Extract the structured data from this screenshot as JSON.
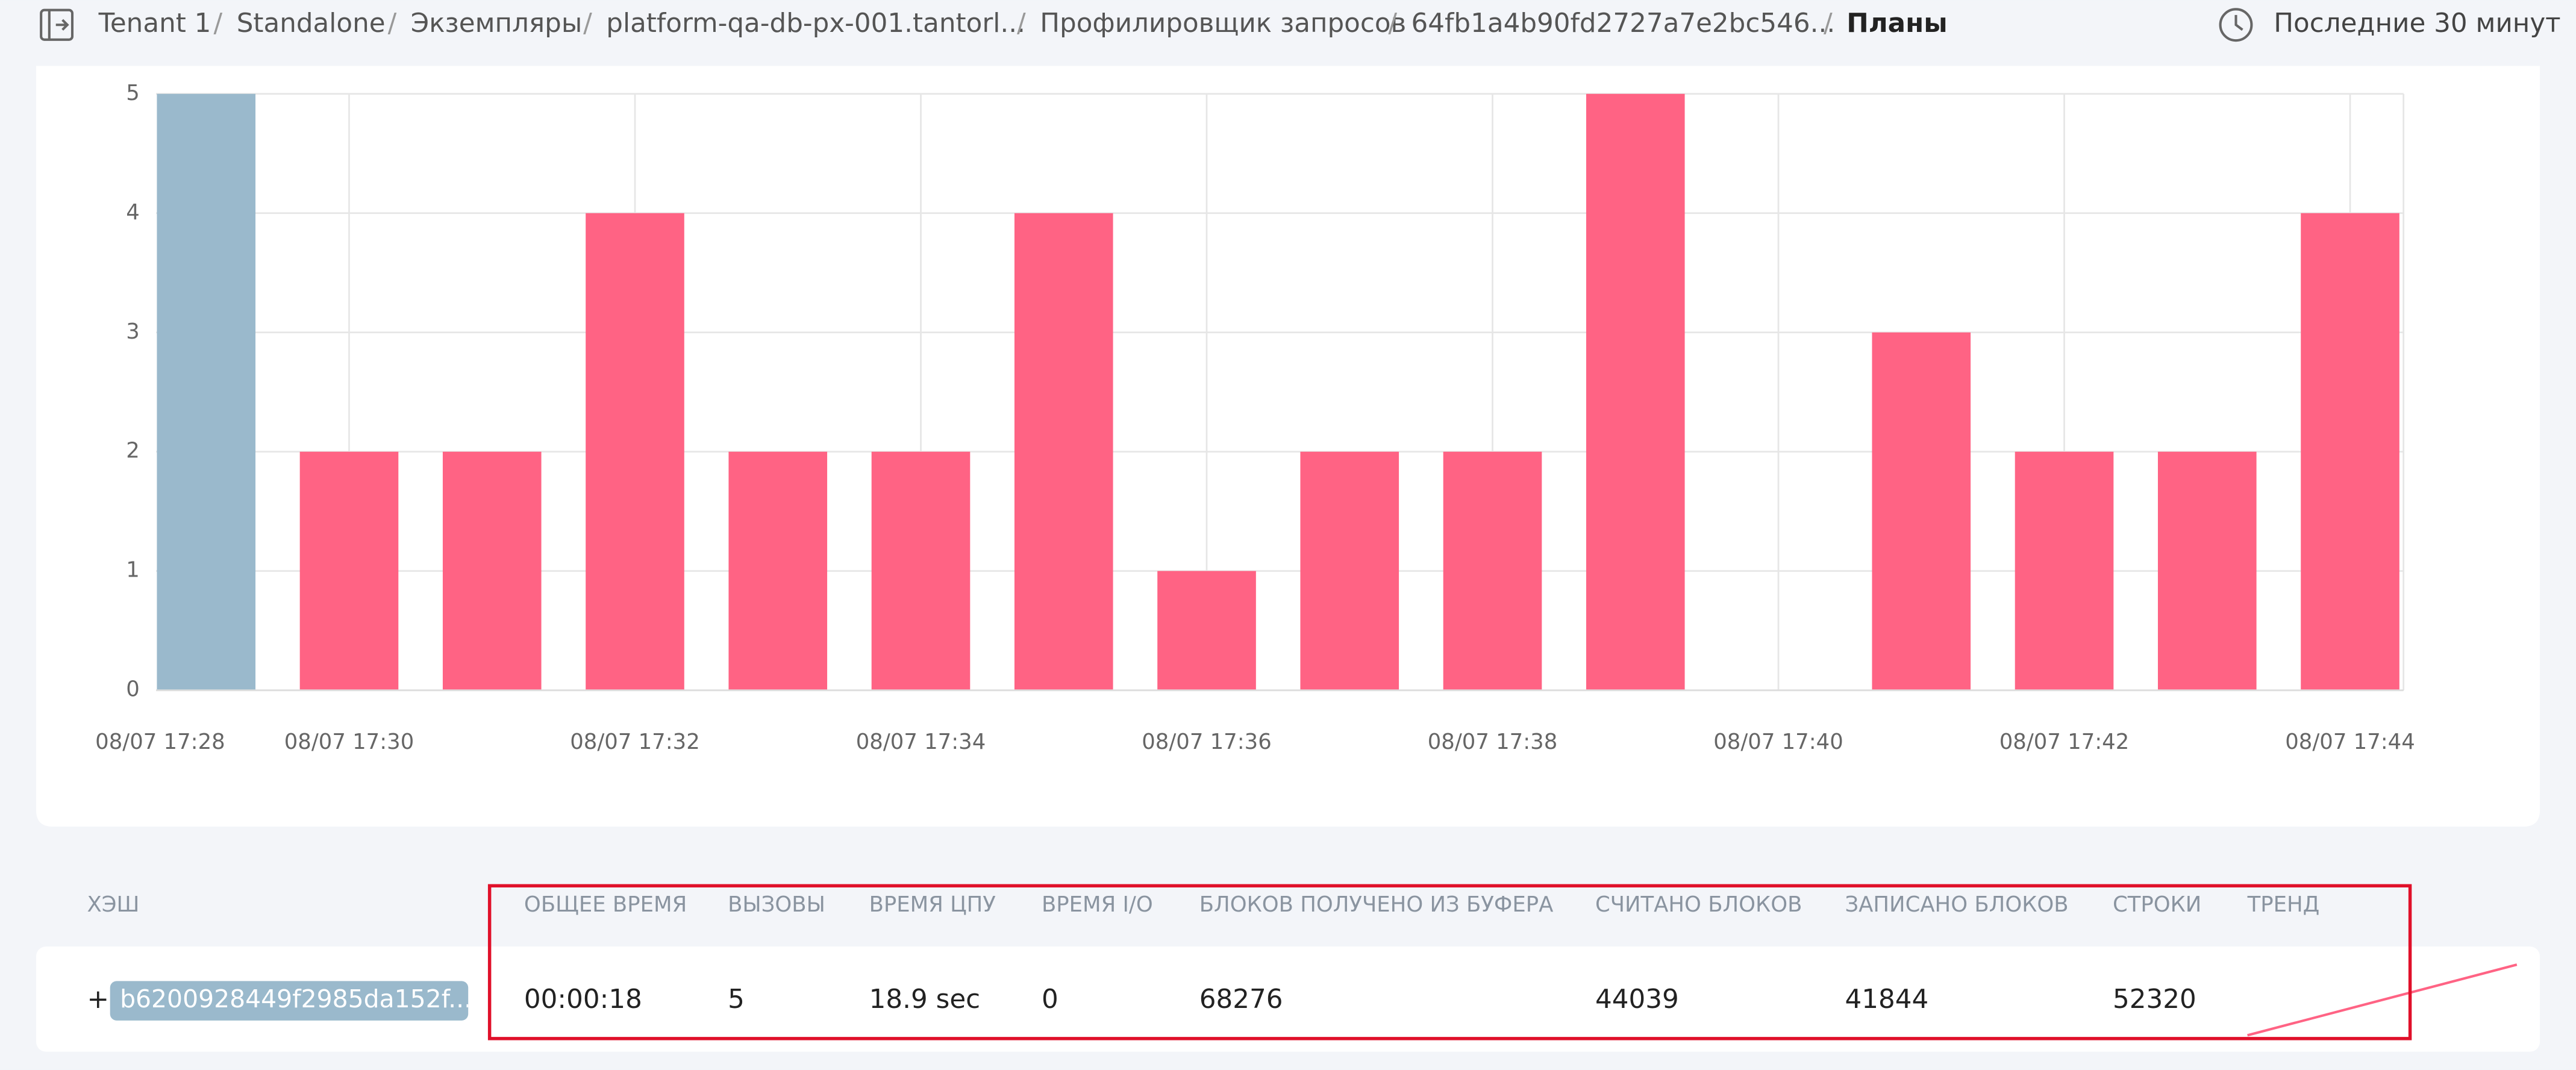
{
  "breadcrumb": {
    "items": [
      "Tenant 1",
      "Standalone",
      "Экземпляры",
      "platform-qa-db-px-001.tantorl...",
      "Профилировщик запросов",
      "64fb1a4b90fd2727a7e2bc546...",
      "Планы"
    ],
    "separator": "/"
  },
  "time_range": "Последние 30 минут",
  "chart_data": {
    "type": "bar",
    "categories": [
      null,
      "08/07 17:30",
      null,
      "08/07 17:32",
      null,
      "08/07 17:34",
      null,
      "08/07 17:36",
      null,
      "08/07 17:38",
      null,
      "08/07 17:40",
      null,
      "08/07 17:42",
      null,
      "08/07 17:44"
    ],
    "x_axis_start_label": "08/07 17:28",
    "values": [
      5,
      2,
      2,
      4,
      2,
      2,
      4,
      1,
      2,
      2,
      5,
      0,
      3,
      2,
      2,
      4
    ],
    "colors": [
      "#9ab9cc",
      "#ff6384",
      "#ff6384",
      "#ff6384",
      "#ff6384",
      "#ff6384",
      "#ff6384",
      "#ff6384",
      "#ff6384",
      "#ff6384",
      "#ff6384",
      "#ff6384",
      "#ff6384",
      "#ff6384",
      "#ff6384",
      "#ff6384"
    ],
    "ylim": [
      0,
      5
    ],
    "yticks": [
      0,
      1,
      2,
      3,
      4,
      5
    ],
    "grid": true
  },
  "table": {
    "columns": [
      "ХЭШ",
      "ОБЩЕЕ ВРЕМЯ",
      "ВЫЗОВЫ",
      "ВРЕМЯ ЦПУ",
      "ВРЕМЯ I/O",
      "БЛОКОВ ПОЛУЧЕНО ИЗ БУФЕРА",
      "СЧИТАНО БЛОКОВ",
      "ЗАПИСАНО БЛОКОВ",
      "СТРОКИ",
      "ТРЕНД"
    ],
    "rows": [
      {
        "expand": "+",
        "cells": [
          "b6200928449f2985da152f...",
          "00:00:18",
          "5",
          "18.9 sec",
          "0",
          "68276",
          "44039",
          "41844",
          "52320"
        ]
      }
    ]
  }
}
